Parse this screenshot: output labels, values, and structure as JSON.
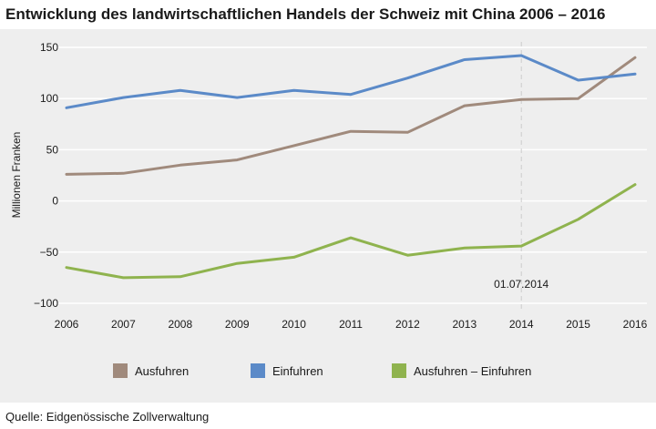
{
  "title": "Entwicklung des landwirtschaftlichen Handels der Schweiz mit China 2006 – 2016",
  "source": "Quelle: Eidgenössische Zollverwaltung",
  "chart_data": {
    "type": "line",
    "x": [
      "2006",
      "2007",
      "2008",
      "2009",
      "2010",
      "2011",
      "2012",
      "2013",
      "2014",
      "2015",
      "2016"
    ],
    "ylabel": "Millionen Franken",
    "ylim": [
      -100,
      150
    ],
    "yticks": [
      "150",
      "100",
      "50",
      "0",
      "−50",
      "−100"
    ],
    "grid": true,
    "legend_position": "bottom",
    "annotation": {
      "label": "01.07.2014",
      "x": "2014",
      "style": "dashed vertical line"
    },
    "series": [
      {
        "name": "Ausfuhren",
        "color": "#a08a7c",
        "values": [
          26,
          27,
          35,
          40,
          54,
          68,
          67,
          93,
          99,
          100,
          140
        ]
      },
      {
        "name": "Einfuhren",
        "color": "#5b8ac8",
        "values": [
          91,
          101,
          108,
          101,
          108,
          104,
          120,
          138,
          142,
          118,
          124
        ]
      },
      {
        "name": "Ausfuhren – Einfuhren",
        "color": "#8fb34e",
        "values": [
          -65,
          -75,
          -74,
          -61,
          -55,
          -36,
          -53,
          -46,
          -44,
          -18,
          16
        ]
      }
    ]
  }
}
